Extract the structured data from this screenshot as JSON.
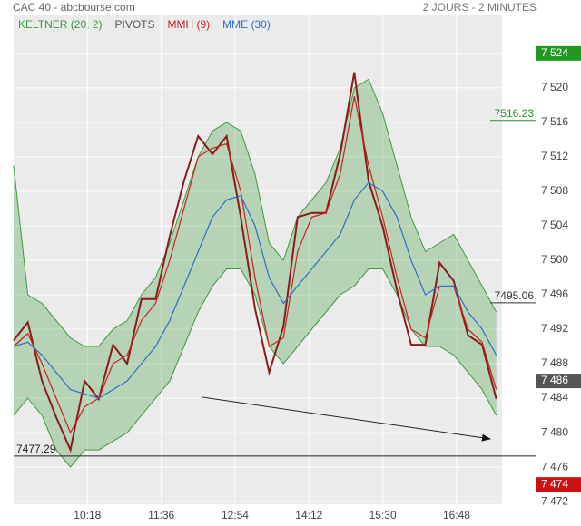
{
  "header": {
    "title": "CAC 40 - abcbourse.com",
    "period": "2 JOURS - 2 MINUTES"
  },
  "chart_data": {
    "type": "line",
    "x": [
      "09:00",
      "09:15",
      "09:30",
      "09:45",
      "10:00",
      "10:15",
      "10:30",
      "10:45",
      "11:00",
      "11:15",
      "11:30",
      "11:45",
      "12:00",
      "12:15",
      "12:30",
      "12:45",
      "13:00",
      "13:15",
      "13:30",
      "13:45",
      "14:00",
      "14:15",
      "14:30",
      "14:45",
      "15:00",
      "15:15",
      "15:30",
      "15:45",
      "16:00",
      "16:15",
      "16:30",
      "16:45",
      "17:00",
      "17:15",
      "17:30"
    ],
    "price": {
      "color": "#8b1a1a",
      "values": [
        7490.7,
        7492.8,
        7486,
        7481.8,
        7478,
        7486,
        7483.9,
        7490.2,
        7488,
        7495.5,
        7495.5,
        7502.8,
        7509.2,
        7514.4,
        7512.3,
        7514.4,
        7505,
        7494.4,
        7487,
        7492.3,
        7505,
        7505.5,
        7505.5,
        7512.3,
        7521.8,
        7509.2,
        7503.9,
        7496.5,
        7490.2,
        7490.2,
        7499.7,
        7497.6,
        7491.3,
        7490.2,
        7483.9
      ]
    },
    "keltner": {
      "name": "KELTNER (20, 2)",
      "color": "#3d9a3d",
      "upper": [
        7511,
        7496,
        7495,
        7493,
        7491,
        7490,
        7490,
        7492,
        7493,
        7496,
        7498,
        7502,
        7507,
        7512,
        7515,
        7516,
        7515,
        7510,
        7502,
        7500,
        7505,
        7507,
        7509,
        7513,
        7520,
        7521,
        7517,
        7511,
        7505,
        7501,
        7502,
        7503,
        7500,
        7497,
        7494
      ],
      "lower": [
        7482,
        7484,
        7482,
        7478,
        7476,
        7478,
        7478,
        7479,
        7480,
        7482,
        7484,
        7486,
        7490,
        7494,
        7497,
        7499,
        7499,
        7496,
        7490,
        7488,
        7490,
        7492,
        7494,
        7496,
        7497,
        7499,
        7499,
        7496,
        7492,
        7490,
        7490,
        7489,
        7487,
        7485,
        7482
      ]
    },
    "mmh": {
      "name": "MMH (9)",
      "color": "#cc2020",
      "values": [
        7490,
        7491.5,
        7488,
        7484,
        7480,
        7483,
        7484,
        7488,
        7489,
        7493,
        7495,
        7500,
        7506,
        7512,
        7513,
        7513.5,
        7508,
        7498,
        7490,
        7491,
        7501,
        7505,
        7505.5,
        7510,
        7519,
        7511,
        7505,
        7498,
        7492,
        7491,
        7497,
        7497,
        7492,
        7490.5,
        7485
      ]
    },
    "mme": {
      "name": "MME (30)",
      "color": "#2a6fc9",
      "values": [
        7490,
        7490.5,
        7489,
        7487,
        7485,
        7484.5,
        7484,
        7485,
        7486,
        7488,
        7490,
        7493,
        7497,
        7501,
        7505,
        7507,
        7507.5,
        7504,
        7498,
        7495,
        7497,
        7499,
        7501,
        7503,
        7507,
        7509,
        7508,
        7505,
        7500,
        7496,
        7497,
        7497,
        7494,
        7492,
        7489
      ]
    },
    "pivots": {
      "name": "PIVOTS",
      "color": "#555555",
      "levels": [
        7516.23,
        7495.06,
        7477.29
      ],
      "colors": [
        "#2e8b2e",
        "#333333",
        "#222222"
      ]
    },
    "price_markers": [
      {
        "value": 7524,
        "label": "7 524",
        "color": "#1f9a1f"
      },
      {
        "value": 7486,
        "label": "7 486",
        "color": "#555555"
      },
      {
        "value": 7474,
        "label": "7 474",
        "color": "#cc1111"
      }
    ],
    "xlim": [
      "09:00",
      "17:36"
    ],
    "xticks": [
      "10:18",
      "11:36",
      "12:54",
      "14:12",
      "15:30",
      "16:48"
    ],
    "ylim": [
      7471.7,
      7528.4
    ],
    "yticks": [
      {
        "value": 7472,
        "label": "7 472"
      },
      {
        "value": 7476,
        "label": "7 476"
      },
      {
        "value": 7480,
        "label": "7 480"
      },
      {
        "value": 7484,
        "label": "7 484"
      },
      {
        "value": 7488,
        "label": "7 488"
      },
      {
        "value": 7492,
        "label": "7 492"
      },
      {
        "value": 7496,
        "label": "7 496"
      },
      {
        "value": 7500,
        "label": "7 500"
      },
      {
        "value": 7504,
        "label": "7 504"
      },
      {
        "value": 7508,
        "label": "7 508"
      },
      {
        "value": 7512,
        "label": "7 512"
      },
      {
        "value": 7516,
        "label": "7 516"
      },
      {
        "value": 7520,
        "label": "7 520"
      },
      {
        "value": 7524,
        "label": "7 524"
      }
    ],
    "grid": true
  }
}
